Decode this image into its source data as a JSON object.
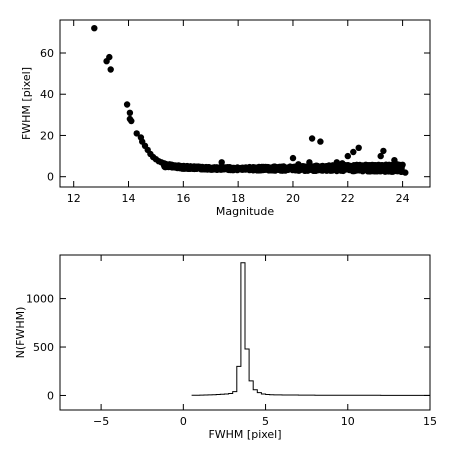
{
  "chart_data": [
    {
      "type": "scatter",
      "title": "",
      "xlabel": "Magnitude",
      "ylabel": "FWHM [pixel]",
      "xlim": [
        11.5,
        25.0
      ],
      "ylim": [
        -5,
        76
      ],
      "xticks": [
        12,
        14,
        16,
        18,
        20,
        22,
        24
      ],
      "yticks": [
        0,
        20,
        40,
        60
      ],
      "xtick_labels": [
        "12",
        "14",
        "16",
        "18",
        "20",
        "22",
        "24"
      ],
      "ytick_labels": [
        "0",
        "20",
        "40",
        "60"
      ],
      "marker": "filled-circle",
      "grid": false,
      "series": [
        {
          "points": [
            [
              12.75,
              72
            ],
            [
              13.2,
              56
            ],
            [
              13.3,
              58
            ],
            [
              13.35,
              52
            ],
            [
              13.95,
              35
            ],
            [
              14.05,
              31
            ],
            [
              14.05,
              28
            ],
            [
              14.1,
              27
            ],
            [
              14.3,
              21
            ],
            [
              14.45,
              19
            ],
            [
              14.5,
              17
            ],
            [
              14.6,
              15
            ],
            [
              14.7,
              13
            ],
            [
              14.8,
              11
            ],
            [
              14.9,
              9.5
            ],
            [
              15.0,
              8.5
            ],
            [
              15.1,
              7.5
            ],
            [
              15.2,
              7
            ],
            [
              15.3,
              6.5
            ],
            [
              15.5,
              6
            ],
            [
              15.7,
              5.5
            ],
            [
              16.0,
              5
            ],
            [
              16.3,
              4.6
            ],
            [
              16.6,
              4.4
            ],
            [
              17.0,
              4.2
            ],
            [
              17.4,
              7
            ],
            [
              17.8,
              4.2
            ],
            [
              18.2,
              4.1
            ],
            [
              18.6,
              4.2
            ],
            [
              19.0,
              4.2
            ],
            [
              19.4,
              4.3
            ],
            [
              19.8,
              4.4
            ],
            [
              20.0,
              9
            ],
            [
              20.2,
              6
            ],
            [
              20.4,
              4.5
            ],
            [
              20.6,
              7
            ],
            [
              20.7,
              18.5
            ],
            [
              21.0,
              17
            ],
            [
              21.3,
              4.5
            ],
            [
              21.6,
              7
            ],
            [
              21.8,
              6.5
            ],
            [
              22.0,
              10
            ],
            [
              22.2,
              12
            ],
            [
              22.4,
              14
            ],
            [
              22.7,
              5
            ],
            [
              23.0,
              4.8
            ],
            [
              23.2,
              10
            ],
            [
              23.3,
              12.5
            ],
            [
              23.5,
              5
            ],
            [
              23.7,
              8
            ],
            [
              23.8,
              6
            ],
            [
              23.9,
              3.5
            ],
            [
              24.1,
              2
            ]
          ],
          "band": {
            "x_start": 15.3,
            "x_end": 24.0,
            "center": [
              [
                15.3,
                5.5
              ],
              [
                16.0,
                4.6
              ],
              [
                17.0,
                4.0
              ],
              [
                18.0,
                3.9
              ],
              [
                19.0,
                3.9
              ],
              [
                20.0,
                4.0
              ],
              [
                21.0,
                4.1
              ],
              [
                22.0,
                4.2
              ],
              [
                23.0,
                4.2
              ],
              [
                24.0,
                4.0
              ]
            ],
            "spread": [
              [
                15.3,
                0.8
              ],
              [
                17.0,
                0.6
              ],
              [
                19.0,
                0.9
              ],
              [
                21.0,
                1.3
              ],
              [
                22.5,
                1.6
              ],
              [
                24.0,
                1.8
              ]
            ]
          }
        }
      ]
    },
    {
      "type": "histogram",
      "title": "",
      "xlabel": "FWHM [pixel]",
      "ylabel": "N(FWHM)",
      "xlim": [
        -7.5,
        15
      ],
      "ylim": [
        -150,
        1450
      ],
      "xticks": [
        -5,
        0,
        5,
        10,
        15
      ],
      "yticks": [
        0,
        500,
        1000
      ],
      "xtick_labels": [
        "−5",
        "0",
        "5",
        "10",
        "15"
      ],
      "ytick_labels": [
        "0",
        "500",
        "1000"
      ],
      "grid": false,
      "bin_width": 0.25,
      "bins": [
        [
          0.5,
          2
        ],
        [
          0.75,
          3
        ],
        [
          1.0,
          4
        ],
        [
          1.25,
          5
        ],
        [
          1.5,
          6
        ],
        [
          1.75,
          8
        ],
        [
          2.0,
          10
        ],
        [
          2.25,
          12
        ],
        [
          2.5,
          15
        ],
        [
          2.75,
          20
        ],
        [
          3.0,
          40
        ],
        [
          3.25,
          300
        ],
        [
          3.5,
          1370
        ],
        [
          3.75,
          480
        ],
        [
          4.0,
          150
        ],
        [
          4.25,
          60
        ],
        [
          4.5,
          30
        ],
        [
          4.75,
          15
        ],
        [
          5.0,
          10
        ],
        [
          5.25,
          8
        ],
        [
          5.5,
          6
        ],
        [
          6.0,
          5
        ],
        [
          7.0,
          4
        ],
        [
          8.0,
          3
        ],
        [
          9.0,
          3
        ],
        [
          10.0,
          2
        ],
        [
          11.0,
          2
        ],
        [
          12.0,
          1
        ],
        [
          13.0,
          1
        ],
        [
          14.0,
          1
        ],
        [
          14.75,
          1
        ]
      ]
    }
  ]
}
